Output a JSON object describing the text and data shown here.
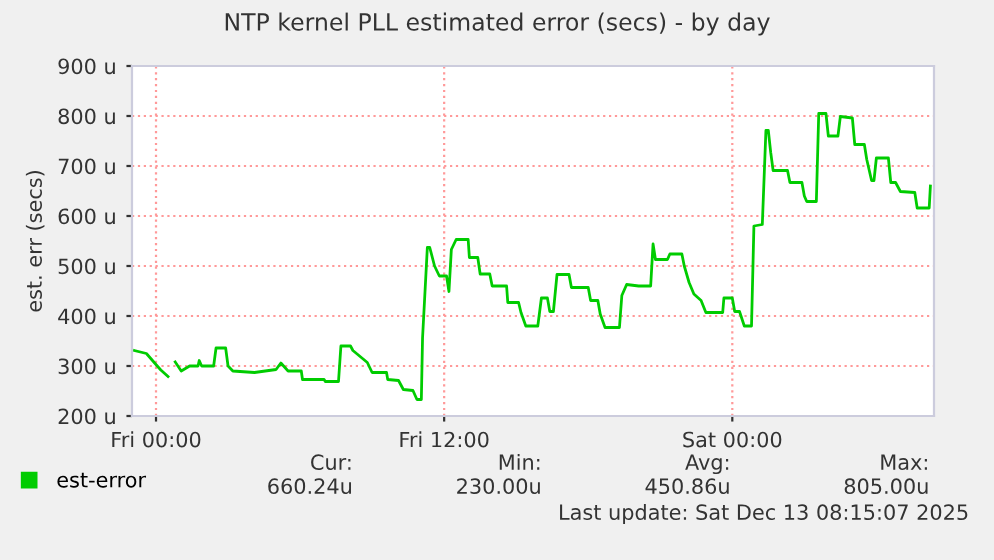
{
  "chart_data": {
    "type": "line",
    "title": "NTP kernel PLL estimated error (secs) - by day",
    "ylabel": "est. err (secs)",
    "x": [
      "2025-12-11T23:06",
      "2025-12-11T23:36",
      "2025-12-12T00:02",
      "2025-12-12T00:12",
      "2025-12-12T00:30",
      "2025-12-12T00:39",
      "2025-12-12T00:48",
      "2025-12-12T01:03",
      "2025-12-12T01:24",
      "2025-12-12T01:45",
      "2025-12-12T01:48",
      "2025-12-12T01:54",
      "2025-12-12T02:24",
      "2025-12-12T02:30",
      "2025-12-12T02:54",
      "2025-12-12T03:00",
      "2025-12-12T03:12",
      "2025-12-12T04:06",
      "2025-12-12T05:00",
      "2025-12-12T05:12",
      "2025-12-12T05:30",
      "2025-12-12T06:03",
      "2025-12-12T06:06",
      "2025-12-12T07:00",
      "2025-12-12T07:03",
      "2025-12-12T07:36",
      "2025-12-12T07:42",
      "2025-12-12T08:06",
      "2025-12-12T08:12",
      "2025-12-12T08:48",
      "2025-12-12T09:00",
      "2025-12-12T09:36",
      "2025-12-12T09:39",
      "2025-12-12T10:06",
      "2025-12-12T10:18",
      "2025-12-12T10:42",
      "2025-12-12T10:52",
      "2025-12-12T11:03",
      "2025-12-12T11:06",
      "2025-12-12T11:18",
      "2025-12-12T11:24",
      "2025-12-12T11:36",
      "2025-12-12T11:48",
      "2025-12-12T12:06",
      "2025-12-12T12:12",
      "2025-12-12T12:18",
      "2025-12-12T12:30",
      "2025-12-12T13:00",
      "2025-12-12T13:03",
      "2025-12-12T13:24",
      "2025-12-12T13:30",
      "2025-12-12T13:54",
      "2025-12-12T14:00",
      "2025-12-12T14:36",
      "2025-12-12T14:39",
      "2025-12-12T15:06",
      "2025-12-12T15:12",
      "2025-12-12T15:24",
      "2025-12-12T15:54",
      "2025-12-12T16:03",
      "2025-12-12T16:18",
      "2025-12-12T16:24",
      "2025-12-12T16:33",
      "2025-12-12T16:42",
      "2025-12-12T17:12",
      "2025-12-12T17:18",
      "2025-12-12T18:00",
      "2025-12-12T18:06",
      "2025-12-12T18:24",
      "2025-12-12T18:30",
      "2025-12-12T18:42",
      "2025-12-12T19:18",
      "2025-12-12T19:24",
      "2025-12-12T19:36",
      "2025-12-12T20:06",
      "2025-12-12T20:36",
      "2025-12-12T20:42",
      "2025-12-12T20:48",
      "2025-12-12T21:18",
      "2025-12-12T21:24",
      "2025-12-12T21:54",
      "2025-12-12T22:00",
      "2025-12-12T22:12",
      "2025-12-12T22:24",
      "2025-12-12T22:42",
      "2025-12-12T22:54",
      "2025-12-12T23:36",
      "2025-12-12T23:39",
      "2025-12-13T00:00",
      "2025-12-13T00:06",
      "2025-12-13T00:18",
      "2025-12-13T00:30",
      "2025-12-13T00:48",
      "2025-12-13T00:54",
      "2025-12-13T01:15",
      "2025-12-13T01:24",
      "2025-12-13T01:30",
      "2025-12-13T01:36",
      "2025-12-13T01:42",
      "2025-12-13T02:18",
      "2025-12-13T02:24",
      "2025-12-13T02:54",
      "2025-12-13T03:00",
      "2025-12-13T03:06",
      "2025-12-13T03:30",
      "2025-12-13T03:36",
      "2025-12-13T03:54",
      "2025-12-13T04:00",
      "2025-12-13T04:24",
      "2025-12-13T04:30",
      "2025-12-13T05:00",
      "2025-12-13T05:06",
      "2025-12-13T05:30",
      "2025-12-13T05:36",
      "2025-12-13T05:48",
      "2025-12-13T05:54",
      "2025-12-13T06:00",
      "2025-12-13T06:30",
      "2025-12-13T06:36",
      "2025-12-13T06:48",
      "2025-12-13T07:00",
      "2025-12-13T07:36",
      "2025-12-13T07:42",
      "2025-12-13T08:12",
      "2025-12-13T08:15"
    ],
    "series": [
      {
        "name": "est-error",
        "color": "#00cc00",
        "values": [
          331,
          325,
          301,
          292,
          279,
          null,
          308,
          290,
          300,
          300,
          311,
          300,
          300,
          336,
          336,
          300,
          290,
          287,
          293,
          306,
          290,
          290,
          273,
          273,
          269,
          269,
          340,
          340,
          331,
          307,
          287,
          287,
          273,
          271,
          253,
          251,
          233,
          233,
          356,
          537,
          537,
          500,
          480,
          480,
          449,
          533,
          553,
          553,
          517,
          517,
          484,
          484,
          460,
          460,
          427,
          427,
          407,
          380,
          380,
          436,
          436,
          409,
          409,
          483,
          483,
          457,
          457,
          431,
          431,
          404,
          377,
          377,
          441,
          463,
          460,
          460,
          544,
          513,
          513,
          524,
          524,
          500,
          467,
          444,
          431,
          407,
          407,
          436,
          436,
          409,
          409,
          380,
          380,
          580,
          583,
          771,
          771,
          727,
          691,
          691,
          667,
          667,
          640,
          629,
          629,
          805,
          805,
          760,
          760,
          799,
          796,
          743,
          743,
          713,
          671,
          671,
          716,
          716,
          667,
          667,
          649,
          647,
          616,
          616,
          660
        ]
      }
    ],
    "xlim": [
      "2025-12-11T23:00",
      "2025-12-13T08:24"
    ],
    "ylim": [
      200,
      900
    ],
    "xticks": [
      {
        "value": "2025-12-12T00:00",
        "label": "Fri 00:00"
      },
      {
        "value": "2025-12-12T12:00",
        "label": "Fri 12:00"
      },
      {
        "value": "2025-12-13T00:00",
        "label": "Sat 00:00"
      }
    ],
    "yticks": [
      {
        "value": 200,
        "label": "200 u"
      },
      {
        "value": 300,
        "label": "300 u"
      },
      {
        "value": 400,
        "label": "400 u"
      },
      {
        "value": 500,
        "label": "500 u"
      },
      {
        "value": 600,
        "label": "600 u"
      },
      {
        "value": 700,
        "label": "700 u"
      },
      {
        "value": 800,
        "label": "800 u"
      },
      {
        "value": 900,
        "label": "900 u"
      }
    ],
    "grid": true,
    "legend": "bottom left",
    "annotations": [
      "Cur:",
      "Min:",
      "Avg:",
      "Max:",
      "660.24u",
      "230.00u",
      "450.86u",
      "805.00u",
      "Last update: Sat Dec 13 08:15:07 2025"
    ]
  }
}
